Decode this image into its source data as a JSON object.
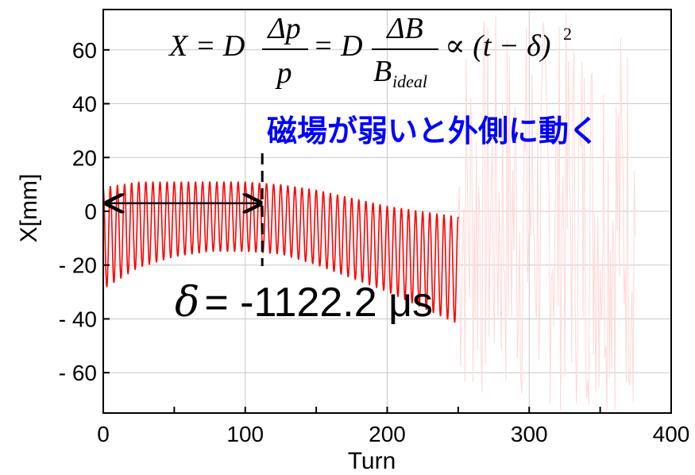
{
  "chart_data": {
    "type": "line",
    "xlabel": "Turn",
    "ylabel": "X[mm]",
    "xlim": [
      0,
      400
    ],
    "ylim": [
      -75,
      75
    ],
    "xticks": [
      "0",
      "100",
      "200",
      "300",
      "400"
    ],
    "yticks": [
      "60",
      "40",
      "20",
      "0",
      "- 20",
      "- 40",
      "- 60"
    ],
    "ytick_values": [
      60,
      40,
      20,
      0,
      -20,
      -40,
      -60
    ],
    "xtick_values": [
      0,
      100,
      200,
      300,
      400
    ],
    "grid": true,
    "series": [
      {
        "color": "#ff0000",
        "description": "oscillating beam position, envelope center",
        "center_x": [
          0,
          25,
          50,
          75,
          100,
          125,
          150,
          175,
          200,
          225,
          250
        ],
        "center_y": [
          -10,
          -5,
          -3,
          -2,
          -2,
          -3,
          -6,
          -10,
          -14,
          -18,
          -22
        ],
        "amplitude": [
          19,
          16,
          14,
          13,
          13,
          13,
          14,
          15,
          16,
          18,
          20
        ],
        "period_turns": 5
      }
    ],
    "faded_series": {
      "color": "#ffd8d8",
      "x_range": [
        250,
        400
      ]
    },
    "annotations": {
      "formula": {
        "lhs": "X = D",
        "frac1_num": "Δp",
        "frac1_den": "p",
        "eq2": "= D",
        "frac2_num": "ΔB",
        "frac2_den_main": "B",
        "frac2_den_sub": "ideal",
        "rhs": "∝ (t − δ)",
        "exponent": "2"
      },
      "note": "磁場が弱いと外側に動く",
      "note_color": "#0000ff",
      "delta_symbol": "δ",
      "delta_text": "= -1122.2 μs",
      "delta_turn": 112
    }
  }
}
